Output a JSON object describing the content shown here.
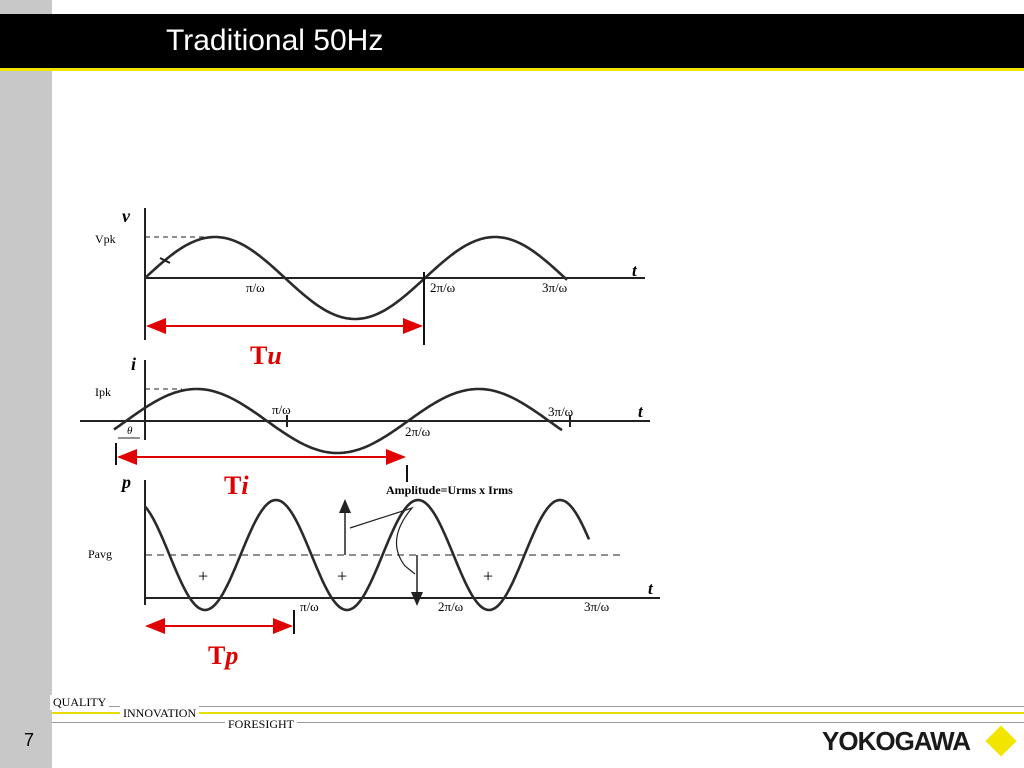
{
  "slide": {
    "title": "Traditional 50Hz",
    "page_number": "7"
  },
  "diagram": {
    "voltage": {
      "axis_v": "v",
      "axis_t": "t",
      "peak_label": "Vpk",
      "tick_1": "π/ω",
      "tick_2": "2π/ω",
      "tick_3": "3π/ω",
      "period_base": "T",
      "period_sub": "u"
    },
    "current": {
      "axis_i": "i",
      "axis_t": "t",
      "peak_label": "Ipk",
      "theta": "θ",
      "tick_1": "π/ω",
      "tick_2": "2π/ω",
      "tick_3": "3π/ω",
      "period_base": "T",
      "period_sub": "i"
    },
    "power": {
      "axis_p": "p",
      "axis_t": "t",
      "avg_label": "Pavg",
      "amplitude_label": "Amplitude=Urms x Irms",
      "plus_1": "+",
      "plus_2": "+",
      "plus_3": "+",
      "tick_1": "π/ω",
      "tick_2": "2π/ω",
      "tick_3": "3π/ω",
      "period_base": "T",
      "period_sub": "p"
    },
    "colors": {
      "curve": "#2a2a2a",
      "period_arrow": "#e00000"
    }
  },
  "footer": {
    "words": [
      "QUALITY",
      "INNOVATION",
      "FORESIGHT"
    ],
    "logo_text": "YOKOGAWA"
  }
}
